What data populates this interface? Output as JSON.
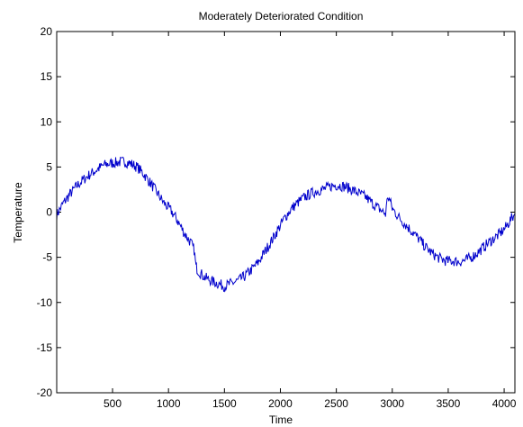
{
  "chart_data": {
    "type": "line",
    "title": "Moderately Deteriorated Condition",
    "xlabel": "Time",
    "ylabel": "Temperature",
    "xlim": [
      1,
      4096
    ],
    "ylim": [
      -20,
      20
    ],
    "xticks": [
      500,
      1000,
      1500,
      2000,
      2500,
      3000,
      3500,
      4000
    ],
    "yticks": [
      -20,
      -15,
      -10,
      -5,
      0,
      5,
      10,
      15,
      20
    ],
    "grid": false,
    "series_color": "#0000cc",
    "series": [
      {
        "values": [
          [
            1,
            -0.3
          ],
          [
            60,
            1.0
          ],
          [
            120,
            2.0
          ],
          [
            180,
            2.9
          ],
          [
            240,
            3.6
          ],
          [
            300,
            4.2
          ],
          [
            360,
            4.7
          ],
          [
            420,
            5.2
          ],
          [
            480,
            5.4
          ],
          [
            540,
            5.5
          ],
          [
            600,
            5.6
          ],
          [
            660,
            5.4
          ],
          [
            720,
            5.0
          ],
          [
            780,
            4.2
          ],
          [
            840,
            3.2
          ],
          [
            900,
            2.1
          ],
          [
            960,
            1.0
          ],
          [
            1020,
            0.2
          ],
          [
            1080,
            -0.9
          ],
          [
            1140,
            -2.3
          ],
          [
            1200,
            -3.4
          ],
          [
            1230,
            -4.2
          ],
          [
            1245,
            -6.0
          ],
          [
            1260,
            -6.4
          ],
          [
            1320,
            -7.2
          ],
          [
            1380,
            -7.6
          ],
          [
            1440,
            -7.9
          ],
          [
            1500,
            -8.2
          ],
          [
            1560,
            -7.9
          ],
          [
            1620,
            -7.6
          ],
          [
            1680,
            -7.1
          ],
          [
            1740,
            -6.4
          ],
          [
            1800,
            -5.6
          ],
          [
            1860,
            -4.4
          ],
          [
            1920,
            -3.2
          ],
          [
            1980,
            -1.9
          ],
          [
            2040,
            -0.6
          ],
          [
            2100,
            0.4
          ],
          [
            2160,
            1.1
          ],
          [
            2220,
            1.7
          ],
          [
            2280,
            2.1
          ],
          [
            2340,
            2.4
          ],
          [
            2400,
            2.6
          ],
          [
            2460,
            2.9
          ],
          [
            2520,
            3.0
          ],
          [
            2580,
            2.8
          ],
          [
            2640,
            2.5
          ],
          [
            2700,
            2.1
          ],
          [
            2760,
            1.7
          ],
          [
            2820,
            1.0
          ],
          [
            2880,
            0.4
          ],
          [
            2940,
            -0.2
          ],
          [
            2960,
            1.8
          ],
          [
            2980,
            1.2
          ],
          [
            3000,
            0.4
          ],
          [
            3060,
            -0.6
          ],
          [
            3120,
            -1.4
          ],
          [
            3180,
            -2.2
          ],
          [
            3240,
            -3.0
          ],
          [
            3300,
            -3.9
          ],
          [
            3360,
            -4.6
          ],
          [
            3420,
            -5.1
          ],
          [
            3480,
            -5.4
          ],
          [
            3540,
            -5.4
          ],
          [
            3600,
            -5.5
          ],
          [
            3660,
            -5.3
          ],
          [
            3720,
            -4.9
          ],
          [
            3780,
            -4.3
          ],
          [
            3840,
            -3.6
          ],
          [
            3900,
            -3.0
          ],
          [
            3960,
            -2.4
          ],
          [
            4020,
            -1.6
          ],
          [
            4060,
            -0.8
          ],
          [
            4096,
            -0.2
          ]
        ]
      }
    ]
  }
}
